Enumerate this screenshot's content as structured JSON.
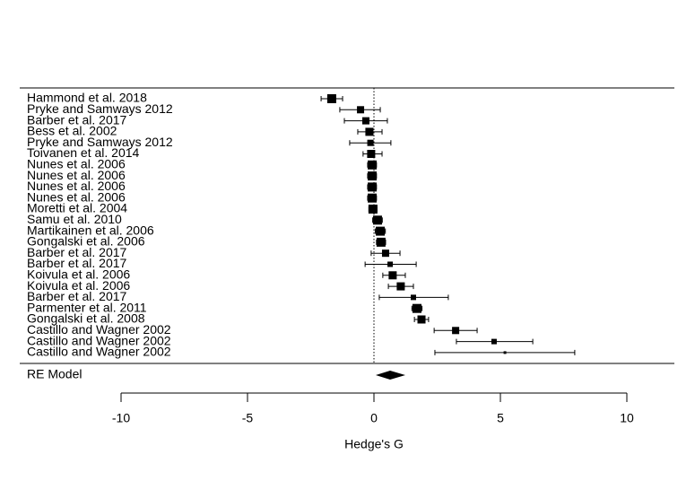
{
  "chart_data": {
    "type": "forest",
    "studies": [
      "Hammond et al. 2018",
      "Pryke and Samways 2012",
      "Barber et al. 2017",
      "Bess et al. 2002",
      "Pryke and Samways 2012",
      "Toivanen et al. 2014",
      "Nunes et al. 2006",
      "Nunes et al. 2006",
      "Nunes et al. 2006",
      "Nunes et al. 2006",
      "Moretti et al. 2004",
      "Samu et al. 2010",
      "Martikainen et al. 2006",
      "Gongalski et al. 2006",
      "Barber et al. 2017",
      "Barber et al. 2017",
      "Koivula et al. 2006",
      "Koivula et al. 2006",
      "Barber et al. 2017",
      "Parmenter et al. 2011",
      "Gongalski et al. 2008",
      "Castillo and Wagner 2002",
      "Castillo and Wagner 2002",
      "Castillo and Wagner 2002"
    ],
    "estimates": [
      -1.67,
      -0.53,
      -0.32,
      -0.18,
      -0.14,
      -0.11,
      -0.07,
      -0.07,
      -0.07,
      -0.07,
      -0.04,
      0.14,
      0.25,
      0.28,
      0.46,
      0.64,
      0.74,
      1.06,
      1.56,
      1.7,
      1.88,
      3.23,
      4.75,
      5.18
    ],
    "ci_lower": [
      -2.09,
      -1.35,
      -1.17,
      -0.64,
      -0.96,
      -0.43,
      -0.25,
      -0.25,
      -0.25,
      -0.25,
      -0.2,
      -0.05,
      0.05,
      0.1,
      -0.11,
      -0.35,
      0.35,
      0.57,
      0.21,
      1.5,
      1.6,
      2.38,
      3.26,
      2.41
    ],
    "ci_upper": [
      -1.24,
      0.25,
      0.53,
      0.32,
      0.67,
      0.32,
      0.1,
      0.1,
      0.1,
      0.1,
      0.12,
      0.33,
      0.45,
      0.46,
      1.03,
      1.67,
      1.24,
      1.56,
      2.94,
      1.9,
      2.16,
      4.08,
      6.28,
      7.94
    ],
    "weights": [
      10,
      8,
      8,
      9,
      7,
      9,
      10,
      10,
      10,
      10,
      10,
      10,
      10,
      10,
      8,
      6,
      9,
      9,
      6,
      10,
      9,
      8,
      6,
      3
    ],
    "summary": {
      "label": "RE Model",
      "estimate": 0.64,
      "ci_lower": 0.07,
      "ci_upper": 1.24
    },
    "refline": 0,
    "xlabel": "Hedge's G",
    "xlim": [
      -10,
      10
    ],
    "xticks": [
      -10,
      -5,
      0,
      5,
      10
    ],
    "color": "#000000"
  }
}
